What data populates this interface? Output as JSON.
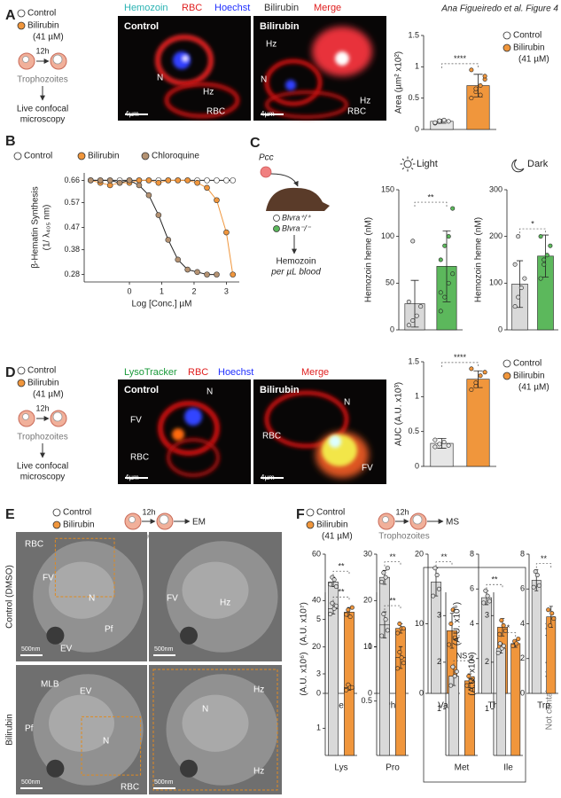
{
  "credit": "Ana Figueiredo et al. Figure 4",
  "panels": {
    "A": {
      "letter": "A",
      "legend": [
        "Control",
        "Bilirubin",
        "(41 µM)"
      ],
      "time": "12h",
      "stage": "Trophozoites",
      "readout": [
        "Live confocal",
        "microscopy"
      ],
      "channels": [
        "Hemozoin",
        "RBC",
        "Hoechst",
        "Bilirubin",
        "Merge"
      ],
      "images": [
        {
          "title": "Control",
          "labels": [
            "N",
            "Hz",
            "RBC"
          ],
          "scale": "4µm"
        },
        {
          "title": "Bilirubin",
          "labels": [
            "Hz",
            "N",
            "Hz",
            "RBC"
          ],
          "scale": "4µm"
        }
      ],
      "chart_legend": [
        "Control",
        "Bilirubin",
        "(41 µM)"
      ]
    },
    "B": {
      "letter": "B"
    },
    "C": {
      "letter": "C",
      "pathogen": "Pcc",
      "genotypes": [
        "Blvra⁺/⁺",
        "Blvra⁻/⁻"
      ],
      "readout": [
        "Hemozoin",
        "per µL blood"
      ]
    },
    "D": {
      "letter": "D",
      "legend": [
        "Control",
        "Bilirubin",
        "(41 µM)"
      ],
      "time": "12h",
      "stage": "Trophozoites",
      "readout": [
        "Live confocal",
        "microscopy"
      ],
      "channels": [
        "LysoTracker",
        "RBC",
        "Hoechst",
        "Merge"
      ],
      "images": [
        {
          "title": "Control",
          "labels": [
            "FV",
            "N",
            "RBC"
          ],
          "scale": "4µm"
        },
        {
          "title": "Bilirubin",
          "labels": [
            "N",
            "RBC",
            "FV"
          ],
          "scale": "4µm"
        }
      ],
      "chart_legend": [
        "Control",
        "Bilirubin",
        "(41 µM)"
      ]
    },
    "E": {
      "letter": "E",
      "legend": [
        "Control",
        "Bilirubin",
        "(41 µM)"
      ],
      "time": "12h",
      "stage": "Trophozoites",
      "output": "EM",
      "rows": [
        "Control (DMSO)",
        "Bilirubin"
      ],
      "images": [
        {
          "labels": [
            "RBC",
            "FV",
            "N",
            "Pf",
            "EV"
          ],
          "scale": "500nm"
        },
        {
          "labels": [
            "FV",
            "Hz"
          ],
          "scale": "500nm"
        },
        {
          "labels": [
            "MLB",
            "EV",
            "Pf",
            "N",
            "RBC"
          ],
          "scale": "500nm"
        },
        {
          "labels": [
            "N",
            "Hz",
            "Hz"
          ],
          "scale": "500nm"
        }
      ]
    },
    "F": {
      "letter": "F",
      "legend": [
        "Control",
        "Bilirubin",
        "(41 µM)"
      ],
      "time": "12h",
      "stage": "Trophozoites",
      "output": "MS",
      "note": "Not contained in hemoglobin"
    }
  },
  "chart_data": [
    {
      "type": "bar",
      "ylabel": "Area (µm² x10²)",
      "colors": [
        "#e6e6e6",
        "#f0963c"
      ],
      "values": [
        0.13,
        0.7
      ],
      "errors": [
        0.03,
        0.18
      ],
      "points": [
        [
          0.1,
          0.12,
          0.15,
          0.13,
          0.11,
          0.14
        ],
        [
          0.5,
          0.6,
          0.7,
          0.8,
          0.95,
          0.65,
          0.55,
          0.85
        ]
      ],
      "ylim": [
        0,
        1.5
      ],
      "yticks": [
        0,
        0.5,
        1,
        1.5
      ],
      "significance": "****"
    },
    {
      "type": "line",
      "ylabel": [
        "β-Hematin Synthesis",
        "(1/ λ₄₀₅ nm)"
      ],
      "xlabel": "Log [Conc.] µM",
      "x": [
        -1.2,
        -0.9,
        -0.6,
        -0.3,
        0,
        0.3,
        0.6,
        0.9,
        1.2,
        1.5,
        1.8,
        2.1,
        2.4,
        2.7,
        3.0,
        3.2
      ],
      "series": [
        {
          "name": "Control",
          "color": "#ffffff",
          "values": [
            0.66,
            0.66,
            0.66,
            0.66,
            0.66,
            0.66,
            0.66,
            0.66,
            0.66,
            0.66,
            0.66,
            0.66,
            0.66,
            0.66,
            0.66,
            0.66
          ]
        },
        {
          "name": "Bilirubin",
          "color": "#f0963c",
          "values": [
            0.66,
            0.65,
            0.64,
            0.65,
            0.65,
            0.66,
            0.66,
            0.65,
            0.66,
            0.66,
            0.66,
            0.65,
            0.63,
            0.58,
            0.45,
            0.28
          ]
        },
        {
          "name": "Chloroquine",
          "color": "#b49272",
          "values": [
            0.66,
            0.66,
            0.66,
            0.65,
            0.66,
            0.64,
            0.6,
            0.52,
            0.42,
            0.34,
            0.3,
            0.29,
            0.28,
            0.28,
            null,
            null
          ]
        }
      ],
      "xlim": [
        -1.4,
        3.4
      ],
      "xticks": [
        0,
        1,
        2,
        3
      ],
      "ylim": [
        0.25,
        0.69
      ],
      "yticks": [
        0.28,
        0.38,
        0.47,
        0.57,
        0.66
      ]
    },
    {
      "type": "bar",
      "title": "Light",
      "ylabel": "Hemozoin heme (nM)",
      "colors": [
        "#d9d9d9",
        "#5cb85c"
      ],
      "values": [
        28,
        68
      ],
      "errors": [
        25,
        38
      ],
      "points": [
        [
          5,
          10,
          15,
          25,
          30,
          95
        ],
        [
          20,
          35,
          50,
          60,
          75,
          90,
          100,
          130,
          40
        ]
      ],
      "ylim": [
        0,
        150
      ],
      "yticks": [
        0,
        50,
        100,
        150
      ],
      "significance": "**"
    },
    {
      "type": "bar",
      "title": "Dark",
      "ylabel": "Hemozoin heme (nM)",
      "colors": [
        "#d9d9d9",
        "#5cb85c"
      ],
      "values": [
        98,
        158
      ],
      "errors": [
        50,
        45
      ],
      "points": [
        [
          50,
          70,
          90,
          110,
          140,
          200
        ],
        [
          110,
          140,
          160,
          180,
          200,
          150
        ]
      ],
      "ylim": [
        0,
        300
      ],
      "yticks": [
        0,
        100,
        200,
        300
      ],
      "significance": "*"
    },
    {
      "type": "bar",
      "ylabel": "AUC (A.U. x10³)",
      "colors": [
        "#e6e6e6",
        "#f0963c"
      ],
      "values": [
        0.33,
        1.25
      ],
      "errors": [
        0.07,
        0.12
      ],
      "points": [
        [
          0.28,
          0.32,
          0.35,
          0.3,
          0.38
        ],
        [
          1.1,
          1.2,
          1.3,
          1.35,
          1.4,
          1.15
        ]
      ],
      "ylim": [
        0,
        1.5
      ],
      "yticks": [
        0,
        0.5,
        1,
        1.5
      ],
      "significance": "****"
    },
    {
      "type": "bar",
      "xlabel": "Leu",
      "ylabel": "(A.U. x10⁷)",
      "colors": [
        "#d9d9d9",
        "#f0963c"
      ],
      "values": [
        48,
        35
      ],
      "errors": [
        2,
        2
      ],
      "points": [
        [
          47,
          50,
          49,
          46
        ],
        [
          34,
          36,
          33,
          37
        ]
      ],
      "ylim": [
        0,
        60
      ],
      "yticks": [
        0,
        20,
        40,
        60
      ],
      "significance": "**"
    },
    {
      "type": "bar",
      "xlabel": "Phe",
      "colors": [
        "#d9d9d9",
        "#f0963c"
      ],
      "values": [
        25,
        14
      ],
      "errors": [
        1.5,
        1
      ],
      "points": [
        [
          24,
          26,
          25,
          27
        ],
        [
          13,
          15,
          14,
          14
        ]
      ],
      "ylim": [
        0,
        30
      ],
      "yticks": [
        0,
        10,
        20,
        30
      ],
      "significance": "**"
    },
    {
      "type": "bar",
      "xlabel": "Val",
      "colors": [
        "#d9d9d9",
        "#f0963c"
      ],
      "values": [
        16,
        9
      ],
      "errors": [
        2,
        2.5
      ],
      "points": [
        [
          14,
          18,
          17,
          15
        ],
        [
          7,
          10,
          12,
          8
        ]
      ],
      "ylim": [
        0,
        20
      ],
      "yticks": [
        0,
        10,
        20
      ],
      "significance": "**"
    },
    {
      "type": "bar",
      "xlabel": "Thr",
      "ylabel": "(A.U. x10⁶)",
      "colors": [
        "#d9d9d9",
        "#f0963c"
      ],
      "values": [
        5.5,
        3.8
      ],
      "errors": [
        0.4,
        0.5
      ],
      "points": [
        [
          5.2,
          5.9,
          5.6,
          5.3
        ],
        [
          3.4,
          4.2,
          3.9,
          3.6
        ]
      ],
      "ylim": [
        0,
        8
      ],
      "yticks": [
        0,
        2,
        4,
        6,
        8
      ],
      "significance": "**"
    },
    {
      "type": "bar",
      "xlabel": "Trp",
      "colors": [
        "#d9d9d9",
        "#f0963c"
      ],
      "values": [
        6.5,
        4.4
      ],
      "errors": [
        0.6,
        0.6
      ],
      "points": [
        [
          6.1,
          7.0,
          6.8,
          6.2
        ],
        [
          4.8,
          3.9,
          4.6,
          4.3
        ]
      ],
      "ylim": [
        0,
        8
      ],
      "yticks": [
        0,
        2,
        4,
        6,
        8
      ],
      "significance": "**"
    },
    {
      "type": "bar",
      "xlabel": "Lys",
      "ylabel": "(A.U. x10⁶)",
      "colors": [
        "#d9d9d9",
        "#f0963c"
      ],
      "values": [
        5.4,
        2.5
      ],
      "errors": [
        0.2,
        0.1
      ],
      "points": [
        [
          5.2,
          5.6,
          5.4,
          5.5
        ],
        [
          2.4,
          2.6,
          2.5,
          2.5
        ]
      ],
      "ylim": [
        0,
        6
      ],
      "yticks": [
        1,
        3,
        5
      ],
      "significance": "**"
    },
    {
      "type": "bar",
      "xlabel": "Pro",
      "colors": [
        "#d9d9d9",
        "#f0963c"
      ],
      "values": [
        1.2,
        0.9
      ],
      "errors": [
        0.12,
        0.1
      ],
      "points": [
        [
          1.1,
          1.3,
          1.25,
          1.15
        ],
        [
          0.8,
          0.95,
          0.9,
          0.85
        ]
      ],
      "ylim": [
        0,
        1.5
      ],
      "yticks": [
        0.5,
        1
      ],
      "significance": "**"
    },
    {
      "type": "bar",
      "xlabel": "Met",
      "colors": [
        "#d9d9d9",
        "#f0963c"
      ],
      "values": [
        1.7,
        1.6
      ],
      "errors": [
        0.2,
        0.15
      ],
      "points": [
        [
          1.5,
          1.9,
          1.7,
          1.8
        ],
        [
          1.5,
          1.7,
          1.6,
          1.65
        ]
      ],
      "ylim": [
        0,
        3.5
      ],
      "yticks": [
        1,
        2,
        3
      ],
      "significance": "NS"
    },
    {
      "type": "bar",
      "xlabel": "Ile",
      "ylabel": "(A.U. x10⁵)",
      "colors": [
        "#d9d9d9",
        "#f0963c"
      ],
      "values": [
        2.3,
        2.4
      ],
      "errors": [
        0.1,
        0.08
      ],
      "points": [
        [
          2.2,
          2.4,
          2.3,
          2.35
        ],
        [
          2.35,
          2.45,
          2.4,
          2.5
        ]
      ],
      "ylim": [
        0,
        3.5
      ],
      "yticks": [
        1,
        2,
        3
      ],
      "significance": "*"
    }
  ]
}
